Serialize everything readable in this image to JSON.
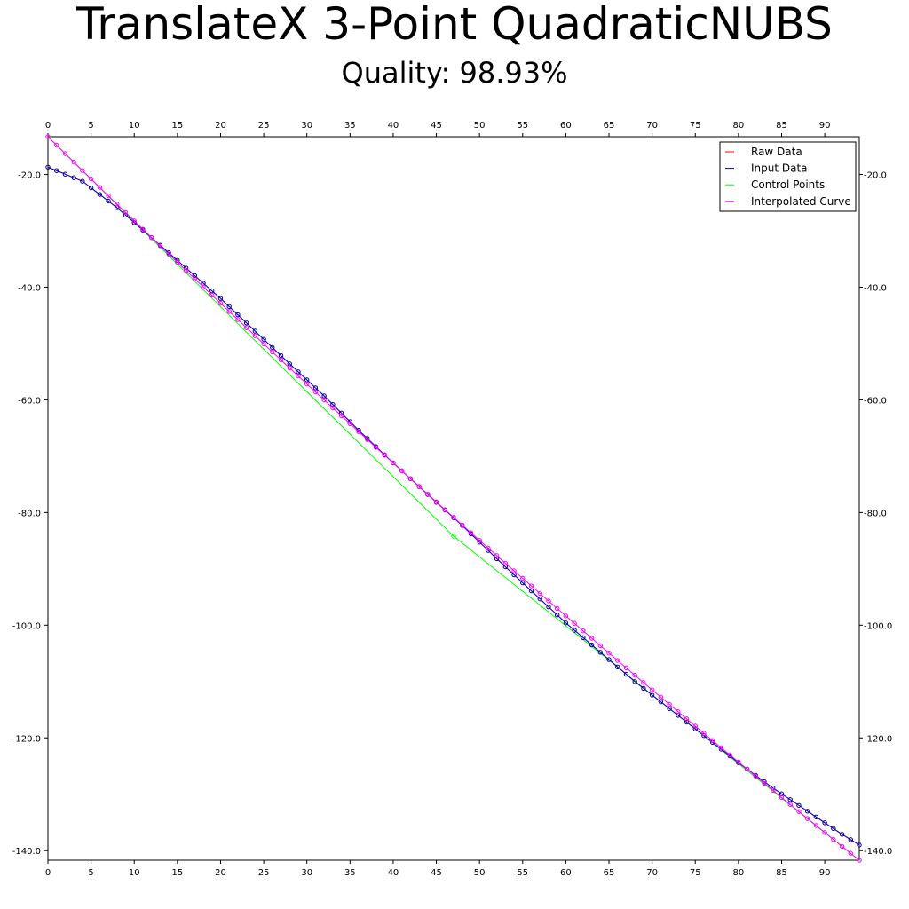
{
  "title": "TranslateX 3-Point QuadraticNUBS",
  "subtitle": "Quality: 98.93%",
  "colors": {
    "raw": "#ff0000",
    "input": "#0000ff",
    "control": "#00ff00",
    "interpolated": "#ff00ff",
    "point_outline": "#000000"
  },
  "chart_data": {
    "type": "line",
    "title": "TranslateX 3-Point QuadraticNUBS",
    "subtitle": "Quality: 98.93%",
    "xlim": [
      0,
      94
    ],
    "ylim": [
      -141.7,
      -13.3
    ],
    "x_ticks": [
      0,
      5,
      10,
      15,
      20,
      25,
      30,
      35,
      40,
      45,
      50,
      55,
      60,
      65,
      70,
      75,
      80,
      85,
      90
    ],
    "x_tick_labels": [
      "0",
      "5",
      "10",
      "15",
      "20",
      "25",
      "30",
      "35",
      "40",
      "45",
      "50",
      "55",
      "60",
      "65",
      "70",
      "75",
      "80",
      "85",
      "90"
    ],
    "y_ticks": [
      -20,
      -40,
      -60,
      -80,
      -100,
      -120,
      -140
    ],
    "y_tick_labels": [
      "-20.0",
      "-40.0",
      "-60.0",
      "-80.0",
      "-100.0",
      "-120.0",
      "-140.0"
    ],
    "grid": false,
    "legend_position": "top-right",
    "legend": [
      "Raw Data",
      "Input Data",
      "Control Points",
      "Interpolated Curve"
    ],
    "series": [
      {
        "name": "Raw Data",
        "color": "#ff0000",
        "model": "cubic_input",
        "x_range": [
          0,
          94
        ]
      },
      {
        "name": "Input Data",
        "color": "#0000ff",
        "model": "cubic_input",
        "x_range": [
          0,
          94
        ],
        "markers": true
      },
      {
        "name": "Control Points",
        "color": "#00ff00",
        "x": [
          0,
          47,
          94
        ],
        "y": [
          -13.3,
          -84.2,
          -141.7
        ],
        "markers": true
      },
      {
        "name": "Interpolated Curve",
        "color": "#ff00ff",
        "model": "quadratic_bezier",
        "x_range": [
          0,
          94
        ],
        "markers": true
      }
    ],
    "input_model": {
      "x_knots": [
        0,
        4,
        8,
        12,
        16,
        20,
        24,
        28,
        32,
        36,
        40,
        44,
        48,
        52,
        56,
        60,
        64,
        68,
        72,
        76,
        80,
        84,
        88,
        92,
        94
      ],
      "y_knots": [
        -18.7,
        -21.2,
        -25.9,
        -31.2,
        -36.6,
        -42.0,
        -47.8,
        -53.6,
        -59.3,
        -65.4,
        -71.2,
        -76.8,
        -82.3,
        -88.2,
        -93.9,
        -99.6,
        -104.8,
        -110.0,
        -114.8,
        -119.6,
        -124.4,
        -128.9,
        -133.0,
        -137.1,
        -139.0
      ]
    }
  }
}
